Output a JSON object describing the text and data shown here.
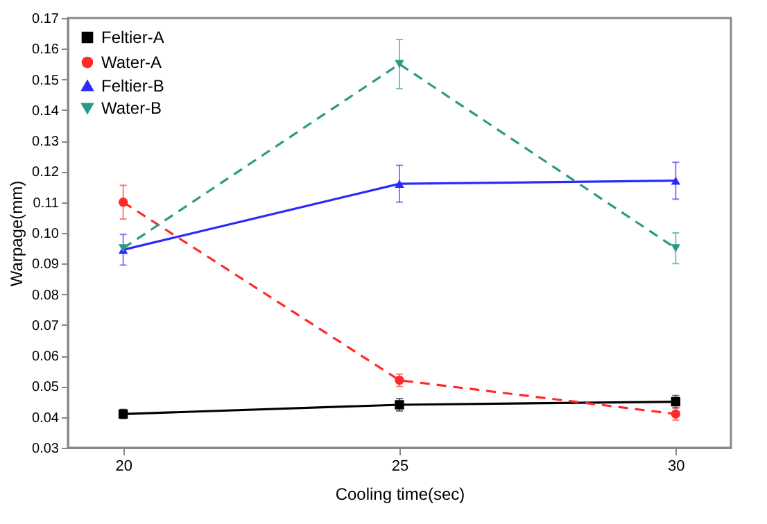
{
  "chart_data": {
    "type": "line",
    "xlabel": "Cooling time(sec)",
    "ylabel": "Warpage(mm)",
    "x": [
      20,
      25,
      30
    ],
    "series": [
      {
        "name": "Feltier-A",
        "color": "#000000",
        "values": [
          0.041,
          0.044,
          0.045
        ],
        "errors": [
          0.0015,
          0.002,
          0.002
        ],
        "marker": "square",
        "line_style": "solid"
      },
      {
        "name": "Water-A",
        "color": "#ff2a2a",
        "values": [
          0.11,
          0.052,
          0.041
        ],
        "errors": [
          0.0055,
          0.002,
          0.002
        ],
        "marker": "circle",
        "line_style": "dashed"
      },
      {
        "name": "Feltier-B",
        "color": "#2a2aff",
        "values": [
          0.0945,
          0.116,
          0.117
        ],
        "errors": [
          0.005,
          0.006,
          0.006
        ],
        "marker": "triangle",
        "line_style": "solid"
      },
      {
        "name": "Water-B",
        "color": "#2a9a88",
        "values": [
          0.095,
          0.155,
          0.095
        ],
        "errors": [
          null,
          0.008,
          0.005
        ],
        "marker": "triangle-down",
        "line_style": "dashed"
      }
    ],
    "xlim": [
      19,
      31
    ],
    "xticks": [
      20,
      25,
      30
    ],
    "ylim": [
      0.03,
      0.17
    ],
    "yticks": [
      0.03,
      0.04,
      0.05,
      0.06,
      0.07,
      0.08,
      0.09,
      {
        "value": 0.1,
        "label": "0.10"
      },
      0.11,
      0.12,
      0.13,
      0.14,
      0.15,
      0.16,
      0.17
    ],
    "grid": false,
    "legend": "top left"
  }
}
